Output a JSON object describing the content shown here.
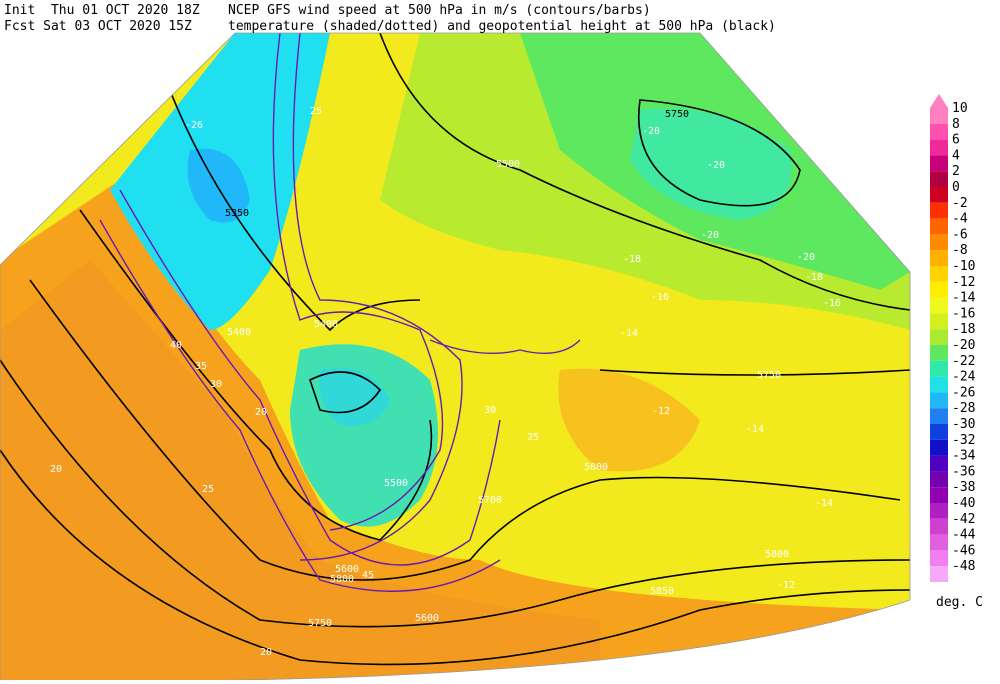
{
  "header": {
    "init": "Init  Thu 01 OCT 2020 18Z",
    "fcst": "Fcst Sat 03 OCT 2020 15Z",
    "title1": "NCEP GFS wind speed at 500 hPa in m/s (contours/barbs)",
    "title2": "temperature (shaded/dotted) and geopotential height at 500 hPa (black)"
  },
  "colorbar": {
    "levels": [
      10,
      8,
      6,
      4,
      2,
      0,
      -2,
      -4,
      -6,
      -8,
      -10,
      -12,
      -14,
      -16,
      -18,
      -20,
      -22,
      -24,
      -26,
      -28,
      -30,
      -32,
      -34,
      -36,
      -38,
      -40,
      -42,
      -44,
      -46,
      -48
    ],
    "colors": [
      "#ff80c0",
      "#ff50b0",
      "#f02898",
      "#c8007a",
      "#b00040",
      "#d00020",
      "#ff3000",
      "#ff6400",
      "#ff8c00",
      "#ffb000",
      "#ffd200",
      "#ffee00",
      "#f0f820",
      "#d2f020",
      "#aaea30",
      "#5ee860",
      "#30e8a8",
      "#20e0e8",
      "#20b8f8",
      "#2080f0",
      "#1040e0",
      "#1010c8",
      "#5000c0",
      "#7400b0",
      "#9000b0",
      "#b020c0",
      "#d040d0",
      "#e060e0",
      "#f080f0",
      "#f8a8f8"
    ],
    "unit": "deg. C"
  },
  "map_labels": [
    "5350",
    "5400",
    "5400",
    "5500",
    "5500",
    "5600",
    "5600",
    "5700",
    "5750",
    "5750",
    "5750",
    "5800",
    "5800",
    "5800",
    "5850",
    "-26",
    "-20",
    "-20",
    "-20",
    "-20",
    "-18",
    "-18",
    "-16",
    "-16",
    "-14",
    "-14",
    "-12",
    "-14",
    "-12",
    "20",
    "25",
    "30",
    "35",
    "40",
    "20",
    "25",
    "20",
    "25",
    "30",
    "45"
  ]
}
